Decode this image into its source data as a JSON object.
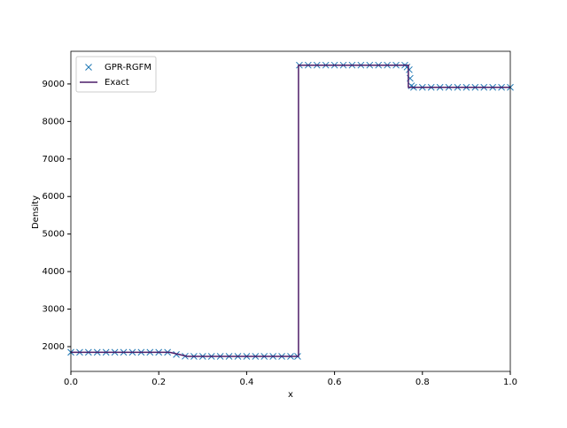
{
  "chart_data": {
    "type": "line",
    "xlabel": "x",
    "ylabel": "Density",
    "xlim": [
      0,
      1
    ],
    "ylim": [
      1340,
      9870
    ],
    "xticks": [
      {
        "value": 0,
        "label": "0.0"
      },
      0.2,
      0.4,
      0.6,
      0.8,
      {
        "value": 1,
        "label": "1.0"
      }
    ],
    "yticks": [
      2000,
      3000,
      4000,
      5000,
      6000,
      7000,
      8000,
      9000
    ],
    "legend": "upper left",
    "series": [
      {
        "name": "GPR-RGFM",
        "style": "marker",
        "color": "#1f77b4",
        "x": [
          0,
          0.02,
          0.04,
          0.06,
          0.08,
          0.1,
          0.12,
          0.14,
          0.16,
          0.18,
          0.2,
          0.22,
          0.24,
          0.26,
          0.28,
          0.3,
          0.32,
          0.34,
          0.36,
          0.38,
          0.4,
          0.42,
          0.44,
          0.46,
          0.48,
          0.5,
          0.516,
          0.52,
          0.54,
          0.56,
          0.58,
          0.6,
          0.62,
          0.64,
          0.66,
          0.68,
          0.7,
          0.72,
          0.74,
          0.76,
          0.765,
          0.77,
          0.772,
          0.775,
          0.78,
          0.8,
          0.82,
          0.84,
          0.86,
          0.88,
          0.9,
          0.92,
          0.94,
          0.96,
          0.98,
          1
        ],
        "values": [
          1850,
          1850,
          1850,
          1850,
          1850,
          1850,
          1850,
          1850,
          1850,
          1850,
          1850,
          1850,
          1790,
          1745,
          1740,
          1740,
          1740,
          1740,
          1740,
          1740,
          1740,
          1740,
          1740,
          1740,
          1740,
          1740,
          1740,
          9500,
          9500,
          9500,
          9500,
          9500,
          9500,
          9500,
          9500,
          9500,
          9500,
          9500,
          9500,
          9500,
          9450,
          9380,
          9150,
          8950,
          8910,
          8910,
          8910,
          8910,
          8910,
          8910,
          8910,
          8910,
          8910,
          8910,
          8910,
          8910
        ]
      },
      {
        "name": "Exact",
        "style": "line",
        "color": "#4c1d68",
        "x": [
          0,
          0.225,
          0.265,
          0.518,
          0.518,
          0.768,
          0.768,
          1
        ],
        "values": [
          1850,
          1850,
          1740,
          1740,
          9500,
          9500,
          8910,
          8910
        ]
      }
    ]
  }
}
